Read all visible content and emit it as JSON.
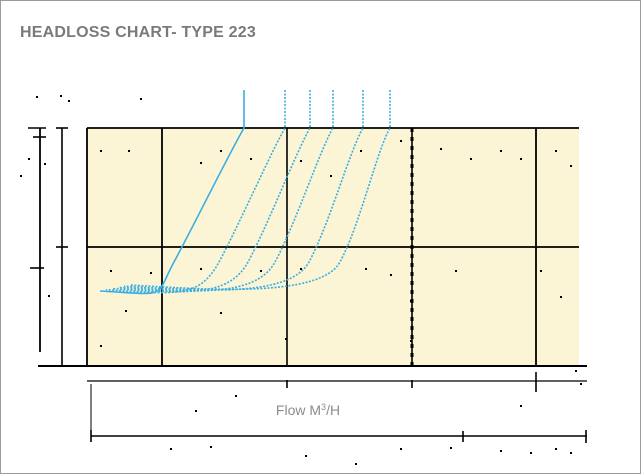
{
  "title": "HEADLOSS CHART- TYPE 223",
  "chart_data": {
    "type": "line",
    "title": "HEADLOSS CHART- TYPE 223",
    "xlabel": "Flow M³/H",
    "ylabel": "",
    "x_scale": "log",
    "y_scale": "log",
    "grid": true,
    "grid_color": "#000000",
    "plot_background": "#fbf5d6",
    "line_color": "#3aaee0",
    "series_count": 6,
    "notes_axes": "tick labels not legible in source",
    "series_shape": "six headloss curves: flat near bottom-left, rising steeply to exit the top of the plot"
  }
}
